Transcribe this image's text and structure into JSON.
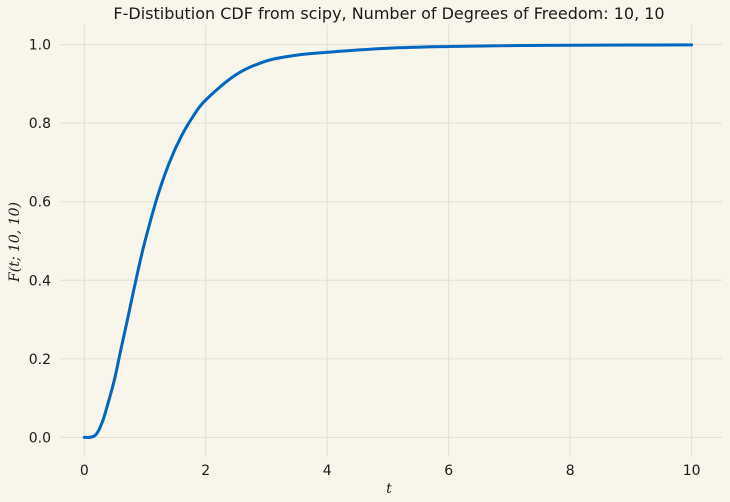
{
  "chart_data": {
    "type": "line",
    "title": "F-Distibution CDF from scipy, Number of Degrees of Freedom: 10, 10",
    "xlabel": "t",
    "ylabel": "F(t; 10, 10)",
    "xlim": [
      -0.4,
      10.5
    ],
    "ylim": [
      -0.05,
      1.05
    ],
    "xticks": [
      0,
      2,
      4,
      6,
      8,
      10
    ],
    "yticks": [
      0.0,
      0.2,
      0.4,
      0.6,
      0.8,
      1.0
    ],
    "xtick_labels": [
      "0",
      "2",
      "4",
      "6",
      "8",
      "10"
    ],
    "ytick_labels": [
      "0.0",
      "0.2",
      "0.4",
      "0.6",
      "0.8",
      "1.0"
    ],
    "grid": true,
    "line_color": "#0066c0",
    "background_color": "#f8f5ea",
    "grid_color": "#e0dfd6",
    "series": [
      {
        "x": [
          0,
          0.1,
          0.2,
          0.3,
          0.4,
          0.5,
          0.6,
          0.7,
          0.8,
          0.9,
          1.0,
          1.2,
          1.4,
          1.6,
          1.8,
          2.0,
          2.5,
          3.0,
          3.5,
          4.0,
          5.0,
          6.0,
          7.0,
          8.0,
          9.0,
          10.0
        ],
        "y": [
          0.0,
          0.0003,
          0.0085,
          0.0404,
          0.0918,
          0.1493,
          0.2219,
          0.2924,
          0.3648,
          0.4355,
          0.5,
          0.611,
          0.6993,
          0.7674,
          0.8194,
          0.859,
          0.9236,
          0.9586,
          0.9733,
          0.9805,
          0.9908,
          0.9952,
          0.9974,
          0.9985,
          0.999,
          0.9994
        ]
      }
    ]
  }
}
